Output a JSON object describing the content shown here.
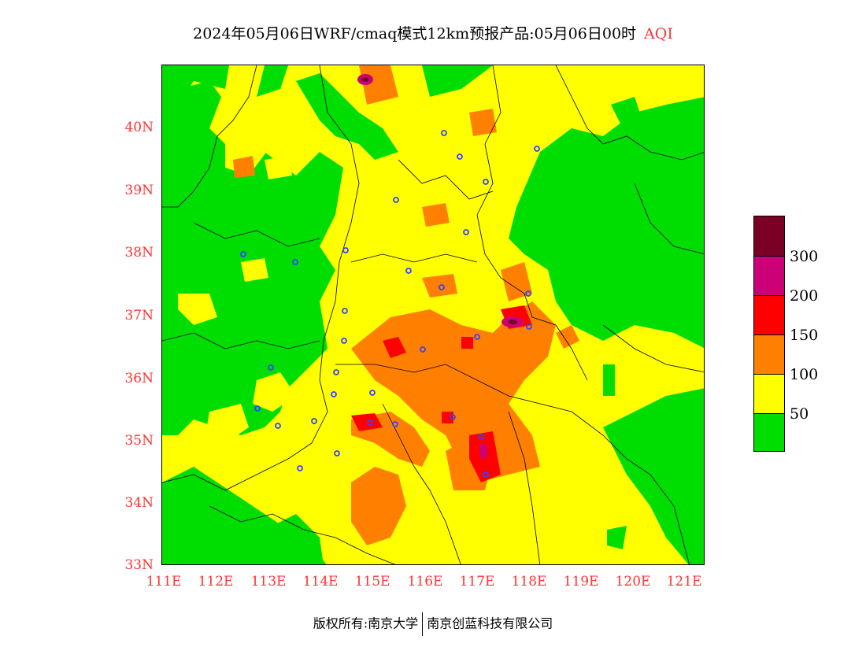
{
  "title": {
    "main": "2024年05月06日WRF/cmaq模式12km预报产品:05月06日00时",
    "variable": "AQI"
  },
  "map": {
    "latitude_labels": [
      "40N",
      "39N",
      "38N",
      "37N",
      "36N",
      "35N",
      "34N",
      "33N"
    ],
    "longitude_labels": [
      "111E",
      "112E",
      "113E",
      "114E",
      "115E",
      "116E",
      "117E",
      "118E",
      "119E",
      "120E",
      "121E"
    ],
    "latitude_range": [
      33,
      41
    ],
    "longitude_range": [
      111,
      121.4
    ],
    "colors": {
      "good": "#00dd00",
      "moderate": "#ffff00",
      "light": "#ff8000",
      "medium": "#ff0000",
      "heavy": "#cc0077",
      "severe": "#7a0025",
      "city_marker": "#3344ff",
      "boundary": "#000000"
    }
  },
  "legend": {
    "labels": [
      "300",
      "200",
      "150",
      "100",
      "50"
    ]
  },
  "copyright": {
    "left": "版权所有:南京大学",
    "right": "南京创蓝科技有限公司"
  }
}
